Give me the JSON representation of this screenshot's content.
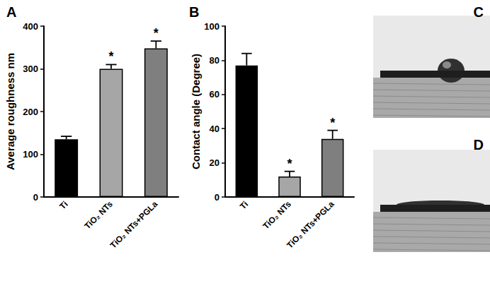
{
  "chart_data": [
    {
      "type": "bar",
      "title": "A",
      "categories": [
        "Ti",
        "TiO₂ NTs",
        "TiO₂ NTs+PGLa"
      ],
      "values": [
        135,
        300,
        348
      ],
      "errors": [
        7,
        10,
        17
      ],
      "colors": [
        "#000000",
        "#a6a6a6",
        "#7f7f7f"
      ],
      "ylabel": "Average roughness nm",
      "ylim": [
        0,
        400
      ],
      "yticks": [
        0,
        100,
        200,
        300,
        400
      ],
      "grid": false,
      "annotations": [
        {
          "category": "TiO₂ NTs",
          "text": "*"
        },
        {
          "category": "TiO₂ NTs+PGLa",
          "text": "*"
        }
      ]
    },
    {
      "type": "bar",
      "title": "B",
      "categories": [
        "Ti",
        "TiO₂ NTs",
        "TiO₂ NTs+PGLa"
      ],
      "values": [
        77,
        12,
        34
      ],
      "errors": [
        7,
        3,
        5
      ],
      "colors": [
        "#000000",
        "#a6a6a6",
        "#7f7f7f"
      ],
      "ylabel": "Contact angle (Degree)",
      "ylim": [
        0,
        100
      ],
      "yticks": [
        0,
        20,
        40,
        60,
        80,
        100
      ],
      "grid": false,
      "annotations": [
        {
          "category": "TiO₂ NTs",
          "text": "*"
        },
        {
          "category": "TiO₂ NTs+PGLa",
          "text": "*"
        }
      ]
    }
  ],
  "panels": [
    {
      "label": "C"
    },
    {
      "label": "D"
    }
  ]
}
